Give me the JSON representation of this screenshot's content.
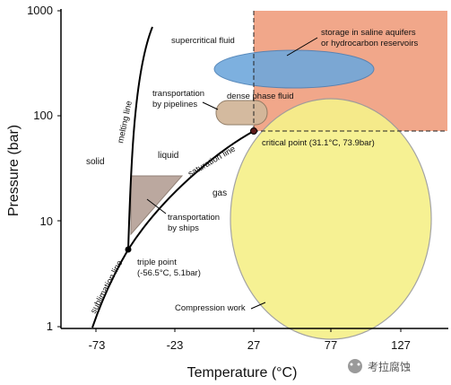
{
  "diagram": {
    "axes": {
      "x_title": "Temperature (°C)",
      "y_title": "Pressure (bar)",
      "x_ticks": [
        "-73",
        "-23",
        "27",
        "77",
        "127"
      ],
      "y_ticks": [
        "1",
        "10",
        "100",
        "1000"
      ]
    },
    "phases": {
      "solid": "solid",
      "liquid": "liquid",
      "gas": "gas",
      "supercritical": "supercritical fluid",
      "dense_phase": "dense phase fluid"
    },
    "curves": {
      "melting": "melting line",
      "saturation": "saturation line",
      "sublimation": "sublimation line"
    },
    "points": {
      "triple_line1": "triple point",
      "triple_line2": "(-56.5°C, 5.1bar)",
      "critical": "critical point (31.1°C, 73.9bar)"
    },
    "regions": {
      "storage_line1": "storage in saline aquifers",
      "storage_line2": "or hydrocarbon reservoirs",
      "pipelines_line1": "transportation",
      "pipelines_line2": "by pipelines",
      "ships_line1": "transportation",
      "ships_line2": "by ships",
      "compression": "Compression work"
    },
    "watermark": "考拉腐蚀",
    "colors": {
      "storage": "#f0a080",
      "supercritical_ellipse": "#6fa8dc",
      "compression": "#f6f08a",
      "pipelines": "#d2b79a",
      "ships": "#b8a49a"
    }
  }
}
